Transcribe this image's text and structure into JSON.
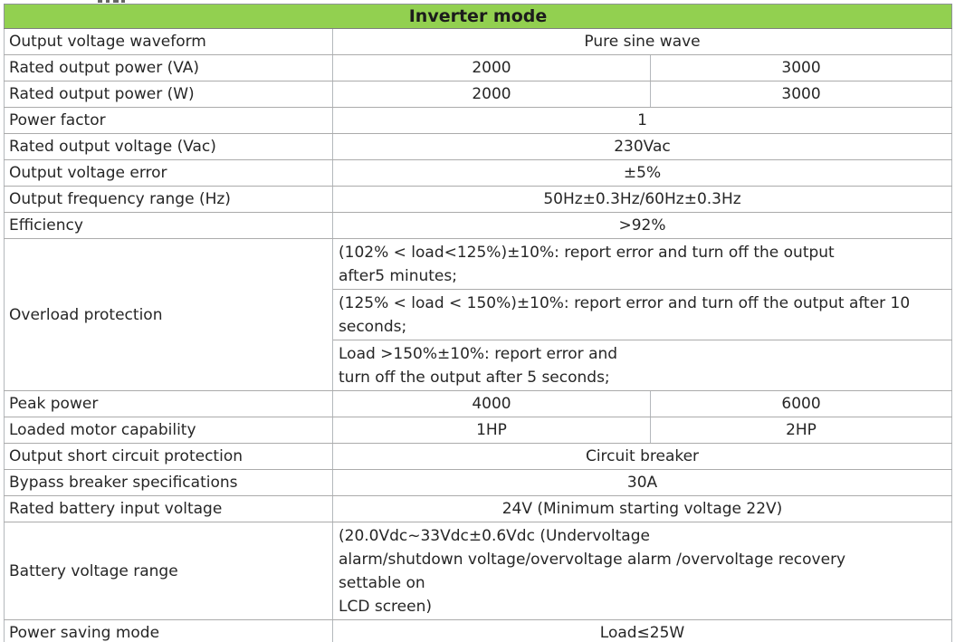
{
  "header": {
    "title": "Inverter mode"
  },
  "colors": {
    "header_green": "#92d050",
    "border_grey": "#b0b4b8",
    "text": "#262626"
  },
  "table": {
    "rows": [
      {
        "label": "Output voltage waveform",
        "value": "Pure sine wave"
      },
      {
        "label": "Rated output power (VA)",
        "v1": "2000",
        "v2": "3000"
      },
      {
        "label": "Rated output power (W)",
        "v1": "2000",
        "v2": "3000"
      },
      {
        "label": "Power factor",
        "value": "1"
      },
      {
        "label": "Rated output voltage (Vac)",
        "value": "230Vac"
      },
      {
        "label": "Output voltage error",
        "value": "±5%"
      },
      {
        "label": "Output frequency range (Hz)",
        "value": "50Hz±0.3Hz/60Hz±0.3Hz"
      },
      {
        "label": "Efficiency",
        "value": ">92%"
      },
      {
        "label": "Overload protection",
        "sub": [
          "(102% < load<125%)±10%: report error and turn off the output\nafter5 minutes;",
          "(125% < load < 150%)±10%: report error and turn off the output after 10\nseconds;",
          "Load >150%±10%: report error and\nturn off the output after 5 seconds;"
        ]
      },
      {
        "label": "Peak power",
        "v1": "4000",
        "v2": "6000"
      },
      {
        "label": "Loaded motor capability",
        "v1": "1HP",
        "v2": "2HP"
      },
      {
        "label": "Output short circuit protection",
        "value": "Circuit breaker"
      },
      {
        "label": "Bypass breaker specifications",
        "value": "30A"
      },
      {
        "label": "Rated battery input voltage",
        "value": "24V (Minimum starting voltage 22V)"
      },
      {
        "label": "Battery voltage range",
        "value": "(20.0Vdc~33Vdc±0.6Vdc (Undervoltage\nalarm/shutdown voltage/overvoltage alarm /overvoltage recovery\nsettable on\nLCD screen)"
      },
      {
        "label": "Power saving mode",
        "value": "Load≤25W"
      }
    ]
  }
}
